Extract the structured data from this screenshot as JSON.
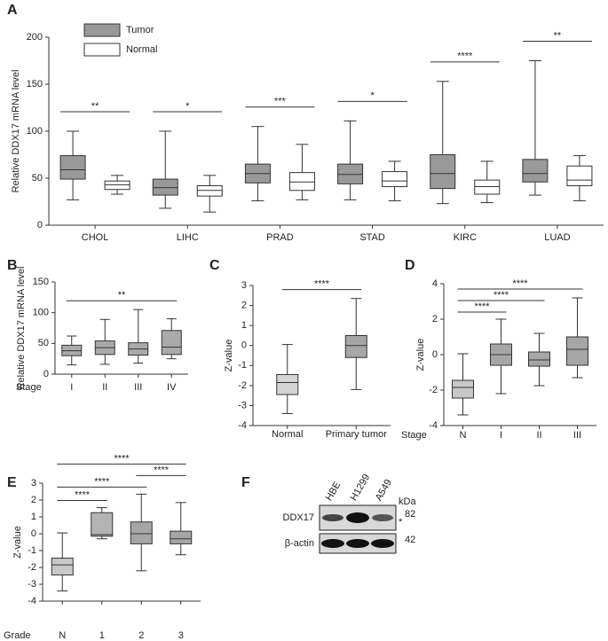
{
  "chart_data": [
    {
      "type": "box",
      "panel": "A",
      "ylabel": "Relative DDX17 mRNA level",
      "categories": [
        "CHOL",
        "LIHC",
        "PRAD",
        "STAD",
        "KIRC",
        "LUAD"
      ],
      "ylim": [
        0,
        200
      ],
      "yticks": [
        0,
        50,
        100,
        150,
        200
      ],
      "series": [
        {
          "name": "Tumor",
          "color": "#999999",
          "boxes": [
            {
              "min": 27,
              "q1": 49,
              "median": 59,
              "q3": 74,
              "max": 100
            },
            {
              "min": 18,
              "q1": 32,
              "median": 40,
              "q3": 49,
              "max": 100
            },
            {
              "min": 26,
              "q1": 45,
              "median": 55,
              "q3": 65,
              "max": 105
            },
            {
              "min": 27,
              "q1": 44,
              "median": 54,
              "q3": 65,
              "max": 111
            },
            {
              "min": 23,
              "q1": 39,
              "median": 55,
              "q3": 75,
              "max": 153
            },
            {
              "min": 32,
              "q1": 46,
              "median": 55,
              "q3": 70,
              "max": 175
            }
          ]
        },
        {
          "name": "Normal",
          "color": "#ffffff",
          "boxes": [
            {
              "min": 33,
              "q1": 38,
              "median": 43,
              "q3": 47,
              "max": 53
            },
            {
              "min": 14,
              "q1": 31,
              "median": 37,
              "q3": 42,
              "max": 53
            },
            {
              "min": 27,
              "q1": 37,
              "median": 46,
              "q3": 56,
              "max": 86
            },
            {
              "min": 26,
              "q1": 41,
              "median": 47,
              "q3": 57,
              "max": 68
            },
            {
              "min": 24,
              "q1": 33,
              "median": 41,
              "q3": 48,
              "max": 68
            },
            {
              "min": 26,
              "q1": 42,
              "median": 48,
              "q3": 63,
              "max": 74
            }
          ]
        }
      ],
      "annotations": [
        {
          "text": "**",
          "category": "CHOL"
        },
        {
          "text": "*",
          "category": "LIHC"
        },
        {
          "text": "***",
          "category": "PRAD"
        },
        {
          "text": "*",
          "category": "STAD"
        },
        {
          "text": "****",
          "category": "KIRC"
        },
        {
          "text": "**",
          "category": "LUAD"
        }
      ]
    },
    {
      "type": "box",
      "panel": "B",
      "ylabel": "Relative DDX17 mRNA level",
      "xlabel": "Stage",
      "categories": [
        "I",
        "II",
        "III",
        "IV"
      ],
      "ylim": [
        0,
        150
      ],
      "yticks": [
        0,
        50,
        100,
        150
      ],
      "series": [
        {
          "color": "#aaaaaa",
          "boxes": [
            {
              "min": 15,
              "q1": 30,
              "median": 38,
              "q3": 47,
              "max": 62
            },
            {
              "min": 16,
              "q1": 32,
              "median": 43,
              "q3": 54,
              "max": 89
            },
            {
              "min": 18,
              "q1": 31,
              "median": 41,
              "q3": 51,
              "max": 105
            },
            {
              "min": 25,
              "q1": 32,
              "median": 44,
              "q3": 71,
              "max": 90
            }
          ]
        }
      ],
      "annotations": [
        {
          "text": "**",
          "from": "I",
          "to": "IV"
        }
      ]
    },
    {
      "type": "box",
      "panel": "C",
      "ylabel": "Z-value",
      "categories": [
        "Normal",
        "Primary tumor"
      ],
      "ylim": [
        -4,
        3
      ],
      "yticks": [
        -4,
        -3,
        -2,
        -1,
        0,
        1,
        2,
        3
      ],
      "series": [
        {
          "color": "#aaaaaa",
          "colors": [
            "#d4d4d4",
            "#a6a6a6"
          ],
          "boxes": [
            {
              "min": -3.4,
              "q1": -2.45,
              "median": -1.85,
              "q3": -1.45,
              "max": 0.05
            },
            {
              "min": -2.2,
              "q1": -0.6,
              "median": 0,
              "q3": 0.5,
              "max": 2.35
            }
          ]
        }
      ],
      "annotations": [
        {
          "text": "****",
          "from": "Normal",
          "to": "Primary tumor"
        }
      ]
    },
    {
      "type": "box",
      "panel": "D",
      "ylabel": "Z-value",
      "xlabel": "Stage",
      "categories": [
        "N",
        "I",
        "II",
        "III"
      ],
      "ylim": [
        -4,
        4
      ],
      "yticks": [
        -4,
        -2,
        0,
        2,
        4
      ],
      "series": [
        {
          "color": "#a6a6a6",
          "colors": [
            "#c8c8c8",
            "#a6a6a6",
            "#a6a6a6",
            "#a6a6a6"
          ],
          "boxes": [
            {
              "min": -3.4,
              "q1": -2.45,
              "median": -1.85,
              "q3": -1.45,
              "max": 0.05
            },
            {
              "min": -2.2,
              "q1": -0.6,
              "median": 0,
              "q3": 0.6,
              "max": 2.0
            },
            {
              "min": -1.75,
              "q1": -0.65,
              "median": -0.3,
              "q3": 0.15,
              "max": 1.2
            },
            {
              "min": -1.3,
              "q1": -0.6,
              "median": 0.3,
              "q3": 1.0,
              "max": 3.2
            }
          ]
        }
      ],
      "annotations": [
        {
          "text": "****",
          "from": "N",
          "to": "I"
        },
        {
          "text": "****",
          "from": "N",
          "to": "II"
        },
        {
          "text": "****",
          "from": "N",
          "to": "III"
        }
      ]
    },
    {
      "type": "box",
      "panel": "E",
      "ylabel": "Z-value",
      "xlabel": "Grade",
      "categories": [
        "N",
        "1",
        "2",
        "3"
      ],
      "ylim": [
        -4,
        3
      ],
      "yticks": [
        -4,
        -3,
        -2,
        -1,
        0,
        1,
        2,
        3
      ],
      "series": [
        {
          "color": "#a6a6a6",
          "colors": [
            "#c8c8c8",
            "#b4b4b4",
            "#a6a6a6",
            "#a6a6a6"
          ],
          "boxes": [
            {
              "min": -3.4,
              "q1": -2.45,
              "median": -1.85,
              "q3": -1.45,
              "max": 0.05
            },
            {
              "min": -0.3,
              "q1": -0.15,
              "median": -0.05,
              "q3": 1.25,
              "max": 1.55
            },
            {
              "min": -2.2,
              "q1": -0.6,
              "median": 0,
              "q3": 0.7,
              "max": 2.35
            },
            {
              "min": -1.25,
              "q1": -0.6,
              "median": -0.3,
              "q3": 0.15,
              "max": 1.85
            }
          ]
        }
      ],
      "annotations": [
        {
          "text": "****",
          "from": "N",
          "to": "1"
        },
        {
          "text": "****",
          "from": "N",
          "to": "2"
        },
        {
          "text": "****",
          "from": "2",
          "to": "3"
        },
        {
          "text": "****",
          "from": "N",
          "to": "3"
        }
      ]
    },
    {
      "type": "blot",
      "panel": "F",
      "lanes": [
        "HBE",
        "H1299",
        "A549"
      ],
      "unit": "kDa",
      "rows": [
        {
          "label": "DDX17",
          "marker": 82,
          "note": "*"
        },
        {
          "label": "β-actin",
          "marker": 42
        }
      ]
    }
  ]
}
